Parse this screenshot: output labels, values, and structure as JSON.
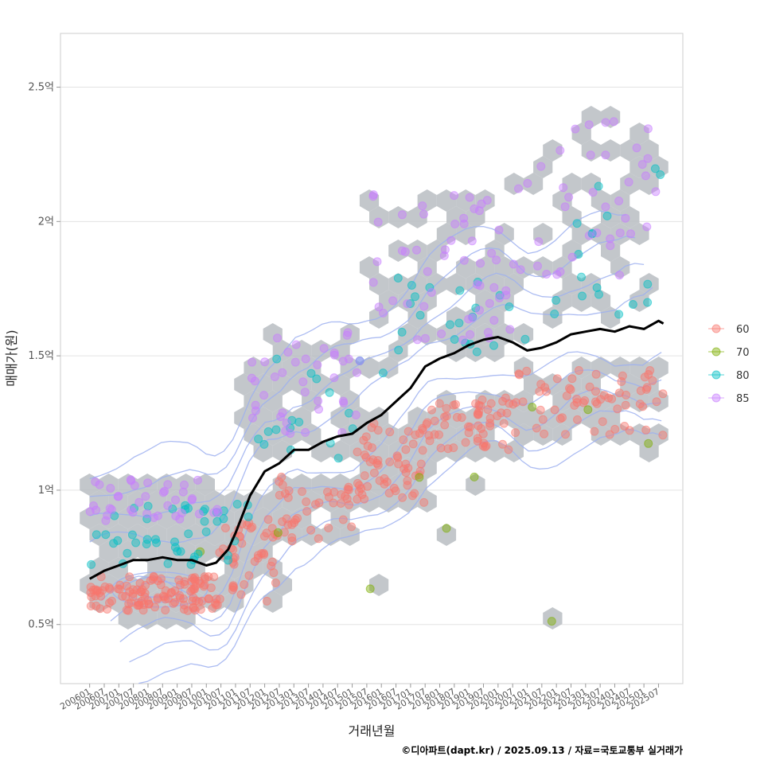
{
  "chart_data": {
    "type": "scatter",
    "xlabel": "거래년월",
    "ylabel": "매매가(원)",
    "caption": "©디아파트(dapt.kr) / 2025.09.13 / 자료=국토교통부 실거래가",
    "y_unit": "억",
    "ylim": [
      0.28,
      2.7
    ],
    "yticks": [
      {
        "value": 0.5,
        "label": "0.5억"
      },
      {
        "value": 1.0,
        "label": "1억"
      },
      {
        "value": 1.5,
        "label": "1.5억"
      },
      {
        "value": 2.0,
        "label": "2억"
      },
      {
        "value": 2.5,
        "label": "2.5억"
      }
    ],
    "xlim": [
      "2005-01",
      "2026-05"
    ],
    "x_tick_labels": [
      "200601",
      "200607",
      "200701",
      "200707",
      "200801",
      "200807",
      "200901",
      "200907",
      "201001",
      "201007",
      "201101",
      "201107",
      "201201",
      "201207",
      "201301",
      "201307",
      "201401",
      "201407",
      "201501",
      "201507",
      "201601",
      "201607",
      "201701",
      "201707",
      "201801",
      "201807",
      "201901",
      "201907",
      "202001",
      "202007",
      "202101",
      "202107",
      "202201",
      "202207",
      "202301",
      "202307",
      "202401",
      "202407",
      "202501",
      "202507"
    ],
    "grid": true,
    "legend_position": "right",
    "legend": [
      {
        "name": "60",
        "color": "#F8766D"
      },
      {
        "name": "70",
        "color": "#7CAE00"
      },
      {
        "name": "80",
        "color": "#00BFC4"
      },
      {
        "name": "85",
        "color": "#C77CFF"
      }
    ],
    "hexbin_color": "#b8bdc2",
    "contour_color": "#9db0f0",
    "trend_line": {
      "name": "moving average",
      "color": "#000000",
      "points": [
        [
          "2006-01",
          0.67
        ],
        [
          "2006-07",
          0.7
        ],
        [
          "2007-01",
          0.72
        ],
        [
          "2007-07",
          0.74
        ],
        [
          "2008-01",
          0.74
        ],
        [
          "2008-07",
          0.75
        ],
        [
          "2009-01",
          0.74
        ],
        [
          "2009-07",
          0.74
        ],
        [
          "2010-01",
          0.72
        ],
        [
          "2010-05",
          0.73
        ],
        [
          "2010-10",
          0.78
        ],
        [
          "2011-01",
          0.84
        ],
        [
          "2011-07",
          0.98
        ],
        [
          "2012-01",
          1.07
        ],
        [
          "2012-07",
          1.1
        ],
        [
          "2013-01",
          1.15
        ],
        [
          "2013-07",
          1.15
        ],
        [
          "2014-01",
          1.18
        ],
        [
          "2014-07",
          1.2
        ],
        [
          "2015-01",
          1.21
        ],
        [
          "2015-07",
          1.25
        ],
        [
          "2016-01",
          1.28
        ],
        [
          "2016-07",
          1.33
        ],
        [
          "2017-01",
          1.38
        ],
        [
          "2017-07",
          1.46
        ],
        [
          "2018-01",
          1.49
        ],
        [
          "2018-07",
          1.51
        ],
        [
          "2019-01",
          1.54
        ],
        [
          "2019-07",
          1.56
        ],
        [
          "2020-01",
          1.57
        ],
        [
          "2020-07",
          1.55
        ],
        [
          "2021-01",
          1.52
        ],
        [
          "2021-07",
          1.53
        ],
        [
          "2022-01",
          1.55
        ],
        [
          "2022-07",
          1.58
        ],
        [
          "2023-01",
          1.59
        ],
        [
          "2023-07",
          1.6
        ],
        [
          "2024-01",
          1.59
        ],
        [
          "2024-07",
          1.61
        ],
        [
          "2025-01",
          1.6
        ],
        [
          "2025-07",
          1.63
        ],
        [
          "2025-09",
          1.62
        ]
      ]
    },
    "point_clusters": [
      {
        "series": "60",
        "x_range": [
          "2006-01",
          "2010-06"
        ],
        "y_range": [
          0.55,
          0.68
        ],
        "n": 120
      },
      {
        "series": "60",
        "x_range": [
          "2010-06",
          "2012-06"
        ],
        "y_range": [
          0.58,
          0.9
        ],
        "n": 45
      },
      {
        "series": "60",
        "x_range": [
          "2012-06",
          "2015-01"
        ],
        "y_range": [
          0.8,
          1.05
        ],
        "n": 40
      },
      {
        "series": "60",
        "x_range": [
          "2015-01",
          "2017-07"
        ],
        "y_range": [
          0.95,
          1.25
        ],
        "n": 60
      },
      {
        "series": "60",
        "x_range": [
          "2017-07",
          "2020-07"
        ],
        "y_range": [
          1.15,
          1.35
        ],
        "n": 55
      },
      {
        "series": "60",
        "x_range": [
          "2020-07",
          "2025-09"
        ],
        "y_range": [
          1.2,
          1.45
        ],
        "n": 65
      },
      {
        "series": "70",
        "x_range": [
          "2006-01",
          "2025-09"
        ],
        "y_range": [
          0.5,
          1.36
        ],
        "n": 10
      },
      {
        "series": "80",
        "x_range": [
          "2006-01",
          "2011-07"
        ],
        "y_range": [
          0.72,
          0.95
        ],
        "n": 45
      },
      {
        "series": "80",
        "x_range": [
          "2011-07",
          "2016-07"
        ],
        "y_range": [
          1.1,
          1.5
        ],
        "n": 18
      },
      {
        "series": "80",
        "x_range": [
          "2016-07",
          "2021-07"
        ],
        "y_range": [
          1.5,
          1.8
        ],
        "n": 22
      },
      {
        "series": "80",
        "x_range": [
          "2021-07",
          "2025-09"
        ],
        "y_range": [
          1.6,
          2.2
        ],
        "n": 18
      },
      {
        "series": "85",
        "x_range": [
          "2006-01",
          "2010-07"
        ],
        "y_range": [
          0.88,
          1.04
        ],
        "n": 40
      },
      {
        "series": "85",
        "x_range": [
          "2011-07",
          "2015-07"
        ],
        "y_range": [
          1.2,
          1.6
        ],
        "n": 40
      },
      {
        "series": "85",
        "x_range": [
          "2015-07",
          "2020-07"
        ],
        "y_range": [
          1.55,
          2.1
        ],
        "n": 55
      },
      {
        "series": "85",
        "x_range": [
          "2020-07",
          "2025-09"
        ],
        "y_range": [
          1.8,
          2.4
        ],
        "n": 40
      }
    ]
  }
}
